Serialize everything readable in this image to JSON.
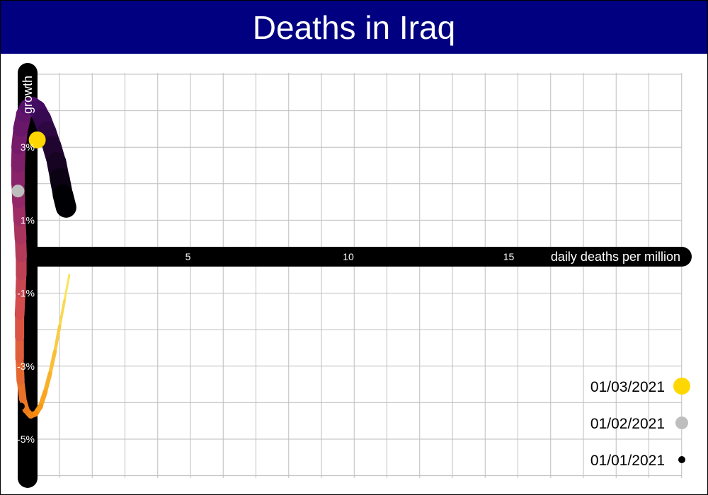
{
  "title": "Deaths in Iraq",
  "chart_data": {
    "type": "line",
    "title": "Deaths in Iraq",
    "xlabel": "daily deaths per million",
    "ylabel": "growth",
    "xlim": [
      -0.7,
      19.5
    ],
    "ylim": [
      -5.5,
      5.5
    ],
    "x_ticks": [
      {
        "value": 5,
        "label": "5"
      },
      {
        "value": 10,
        "label": "10"
      },
      {
        "value": 15,
        "label": "15"
      }
    ],
    "y_ticks": [
      {
        "value": 3,
        "label": "3%"
      },
      {
        "value": 1,
        "label": "1%"
      },
      {
        "value": -1,
        "label": "-1%"
      },
      {
        "value": -3,
        "label": "-3%"
      },
      {
        "value": -5,
        "label": "-5%"
      }
    ],
    "grid": true,
    "x": [
      0.6,
      0.45,
      0.3,
      0.18,
      0.1,
      0.05,
      0.0,
      -0.05,
      -0.08,
      -0.1,
      -0.1,
      -0.1,
      -0.1,
      -0.1,
      -0.08,
      -0.05,
      0.0,
      0.05,
      0.1,
      0.2,
      0.45,
      0.65,
      0.85,
      1.0,
      1.1,
      1.15,
      1.2,
      0.95,
      0.7,
      0.5,
      0.3,
      0.15,
      0.05,
      0.0,
      -0.1,
      -0.2,
      -0.3,
      -0.35,
      -0.3,
      -0.25,
      -0.2,
      -0.15,
      -0.1,
      -0.05,
      0.0,
      0.05,
      0.1,
      0.15,
      0.2,
      0.3,
      0.4,
      0.5,
      0.6,
      0.7,
      0.8,
      0.9,
      1.0,
      1.05
    ],
    "y": [
      -4.1,
      -4.3,
      -4.4,
      -4.4,
      -4.3,
      -4.0,
      -3.6,
      -3.0,
      -2.4,
      -1.8,
      -1.2,
      -0.6,
      -0.1,
      0.3,
      0.7,
      1.1,
      1.5,
      1.9,
      2.3,
      2.7,
      3.0,
      3.3,
      3.55,
      3.75,
      3.9,
      4.05,
      4.1,
      4.15,
      4.15,
      4.1,
      4.05,
      4.0,
      3.9,
      3.8,
      3.6,
      3.4,
      3.2,
      2.9,
      2.6,
      2.3,
      2.1,
      1.9,
      1.7,
      1.5,
      1.3,
      1.1,
      0.9,
      0.7,
      0.5,
      0.2,
      -0.1,
      -0.4,
      -0.7,
      -1.0,
      -1.3,
      -1.6,
      -1.8,
      -1.95
    ],
    "highlights": [
      {
        "label": "01/03/2021",
        "x": 0.3,
        "y": 3.2,
        "color": "#FFD700"
      },
      {
        "label": "01/02/2021",
        "x": -0.3,
        "y": 1.8,
        "color": "#BEBEBE"
      },
      {
        "label": "01/01/2021",
        "x": -0.2,
        "y": -4.1,
        "color": "#000000"
      }
    ],
    "colors": {
      "title_bar": "#000080",
      "axis": "#000000",
      "grid": "#BEBEBE",
      "gradient_start": "#FAE45C",
      "gradient_mid1": "#F98E09",
      "gradient_mid2": "#D8504A",
      "gradient_mid3": "#8F2469",
      "gradient_mid4": "#4A0C6B",
      "gradient_end": "#000004"
    }
  },
  "legend": [
    {
      "label": "01/03/2021",
      "color": "#FFD700",
      "size": "large"
    },
    {
      "label": "01/02/2021",
      "color": "#BEBEBE",
      "size": "medium"
    },
    {
      "label": "01/01/2021",
      "color": "#000000",
      "size": "small"
    }
  ]
}
